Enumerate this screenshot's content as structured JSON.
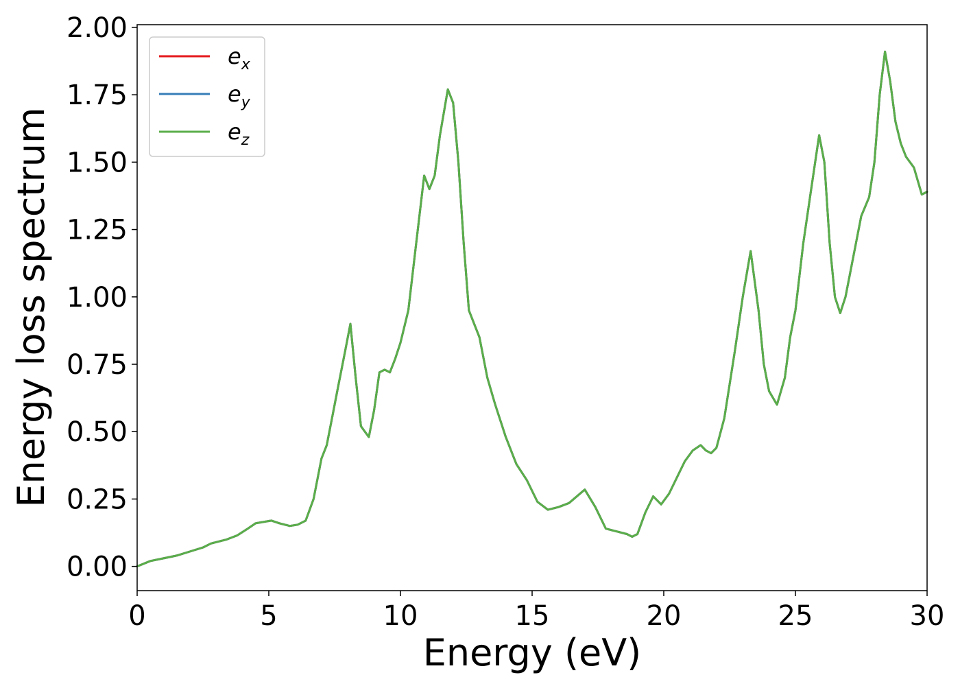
{
  "chart_data": {
    "type": "line",
    "title": "",
    "xlabel": "Energy (eV)",
    "ylabel": "Energy loss spectrum",
    "xlim": [
      0,
      30
    ],
    "ylim": [
      -0.09,
      2.01
    ],
    "xticks": [
      0,
      5,
      10,
      15,
      20,
      25,
      30
    ],
    "xtick_labels": [
      "0",
      "5",
      "10",
      "15",
      "20",
      "25",
      "30"
    ],
    "yticks": [
      0.0,
      0.25,
      0.5,
      0.75,
      1.0,
      1.25,
      1.5,
      1.75,
      2.0
    ],
    "ytick_labels": [
      "0.00",
      "0.25",
      "0.50",
      "0.75",
      "1.00",
      "1.25",
      "1.50",
      "1.75",
      "2.00"
    ],
    "grid": false,
    "legend_position": "top-left",
    "x": [
      0.0,
      0.5,
      1.0,
      1.5,
      2.0,
      2.5,
      2.8,
      3.0,
      3.4,
      3.8,
      4.2,
      4.5,
      4.8,
      5.1,
      5.4,
      5.8,
      6.1,
      6.4,
      6.7,
      7.0,
      7.2,
      7.4,
      7.6,
      7.9,
      8.1,
      8.3,
      8.5,
      8.8,
      9.0,
      9.2,
      9.4,
      9.6,
      9.8,
      10.0,
      10.3,
      10.6,
      10.9,
      11.1,
      11.3,
      11.5,
      11.8,
      12.0,
      12.2,
      12.4,
      12.6,
      12.8,
      13.0,
      13.3,
      13.6,
      14.0,
      14.4,
      14.8,
      15.2,
      15.6,
      16.0,
      16.4,
      16.7,
      17.0,
      17.4,
      17.8,
      18.2,
      18.6,
      18.8,
      19.0,
      19.3,
      19.6,
      19.9,
      20.2,
      20.5,
      20.8,
      21.1,
      21.4,
      21.6,
      21.8,
      22.0,
      22.3,
      22.7,
      23.0,
      23.3,
      23.6,
      23.8,
      24.0,
      24.3,
      24.6,
      24.8,
      25.0,
      25.3,
      25.6,
      25.9,
      26.1,
      26.3,
      26.5,
      26.7,
      26.9,
      27.2,
      27.5,
      27.8,
      28.0,
      28.2,
      28.4,
      28.6,
      28.8,
      29.0,
      29.2,
      29.5,
      29.8,
      30.0
    ],
    "series": [
      {
        "name": "e_x",
        "color": "#e41a1c",
        "y": [
          0.0,
          0.02,
          0.03,
          0.04,
          0.055,
          0.07,
          0.085,
          0.09,
          0.1,
          0.115,
          0.14,
          0.16,
          0.165,
          0.17,
          0.16,
          0.15,
          0.155,
          0.17,
          0.25,
          0.4,
          0.45,
          0.55,
          0.65,
          0.8,
          0.9,
          0.7,
          0.52,
          0.48,
          0.58,
          0.72,
          0.73,
          0.72,
          0.77,
          0.83,
          0.95,
          1.2,
          1.45,
          1.4,
          1.45,
          1.6,
          1.77,
          1.72,
          1.5,
          1.2,
          0.95,
          0.9,
          0.85,
          0.7,
          0.6,
          0.48,
          0.38,
          0.32,
          0.24,
          0.21,
          0.22,
          0.235,
          0.26,
          0.285,
          0.22,
          0.14,
          0.13,
          0.12,
          0.11,
          0.12,
          0.2,
          0.26,
          0.23,
          0.27,
          0.33,
          0.39,
          0.43,
          0.45,
          0.43,
          0.42,
          0.44,
          0.55,
          0.8,
          1.0,
          1.17,
          0.95,
          0.75,
          0.65,
          0.6,
          0.7,
          0.85,
          0.95,
          1.2,
          1.4,
          1.6,
          1.5,
          1.2,
          1.0,
          0.94,
          1.0,
          1.15,
          1.3,
          1.37,
          1.5,
          1.75,
          1.91,
          1.8,
          1.65,
          1.57,
          1.52,
          1.48,
          1.38,
          1.39
        ]
      },
      {
        "name": "e_y",
        "color": "#377eb8",
        "y": [
          0.0,
          0.02,
          0.03,
          0.04,
          0.055,
          0.07,
          0.085,
          0.09,
          0.1,
          0.115,
          0.14,
          0.16,
          0.165,
          0.17,
          0.16,
          0.15,
          0.155,
          0.17,
          0.25,
          0.4,
          0.45,
          0.55,
          0.65,
          0.8,
          0.9,
          0.7,
          0.52,
          0.48,
          0.58,
          0.72,
          0.73,
          0.72,
          0.77,
          0.83,
          0.95,
          1.2,
          1.45,
          1.4,
          1.45,
          1.6,
          1.77,
          1.72,
          1.5,
          1.2,
          0.95,
          0.9,
          0.85,
          0.7,
          0.6,
          0.48,
          0.38,
          0.32,
          0.24,
          0.21,
          0.22,
          0.235,
          0.26,
          0.285,
          0.22,
          0.14,
          0.13,
          0.12,
          0.11,
          0.12,
          0.2,
          0.26,
          0.23,
          0.27,
          0.33,
          0.39,
          0.43,
          0.45,
          0.43,
          0.42,
          0.44,
          0.55,
          0.8,
          1.0,
          1.17,
          0.95,
          0.75,
          0.65,
          0.6,
          0.7,
          0.85,
          0.95,
          1.2,
          1.4,
          1.6,
          1.5,
          1.2,
          1.0,
          0.94,
          1.0,
          1.15,
          1.3,
          1.37,
          1.5,
          1.75,
          1.91,
          1.8,
          1.65,
          1.57,
          1.52,
          1.48,
          1.38,
          1.39
        ]
      },
      {
        "name": "e_z",
        "color": "#5aae4a",
        "y": [
          0.0,
          0.02,
          0.03,
          0.04,
          0.055,
          0.07,
          0.085,
          0.09,
          0.1,
          0.115,
          0.14,
          0.16,
          0.165,
          0.17,
          0.16,
          0.15,
          0.155,
          0.17,
          0.25,
          0.4,
          0.45,
          0.55,
          0.65,
          0.8,
          0.9,
          0.7,
          0.52,
          0.48,
          0.58,
          0.72,
          0.73,
          0.72,
          0.77,
          0.83,
          0.95,
          1.2,
          1.45,
          1.4,
          1.45,
          1.6,
          1.77,
          1.72,
          1.5,
          1.2,
          0.95,
          0.9,
          0.85,
          0.7,
          0.6,
          0.48,
          0.38,
          0.32,
          0.24,
          0.21,
          0.22,
          0.235,
          0.26,
          0.285,
          0.22,
          0.14,
          0.13,
          0.12,
          0.11,
          0.12,
          0.2,
          0.26,
          0.23,
          0.27,
          0.33,
          0.39,
          0.43,
          0.45,
          0.43,
          0.42,
          0.44,
          0.55,
          0.8,
          1.0,
          1.17,
          0.95,
          0.75,
          0.65,
          0.6,
          0.7,
          0.85,
          0.95,
          1.2,
          1.4,
          1.6,
          1.5,
          1.2,
          1.0,
          0.94,
          1.0,
          1.15,
          1.3,
          1.37,
          1.5,
          1.75,
          1.91,
          1.8,
          1.65,
          1.57,
          1.52,
          1.48,
          1.38,
          1.39
        ]
      }
    ],
    "legend": [
      {
        "base": "e",
        "sub": "x",
        "color": "#e41a1c"
      },
      {
        "base": "e",
        "sub": "y",
        "color": "#377eb8"
      },
      {
        "base": "e",
        "sub": "z",
        "color": "#5aae4a"
      }
    ]
  }
}
